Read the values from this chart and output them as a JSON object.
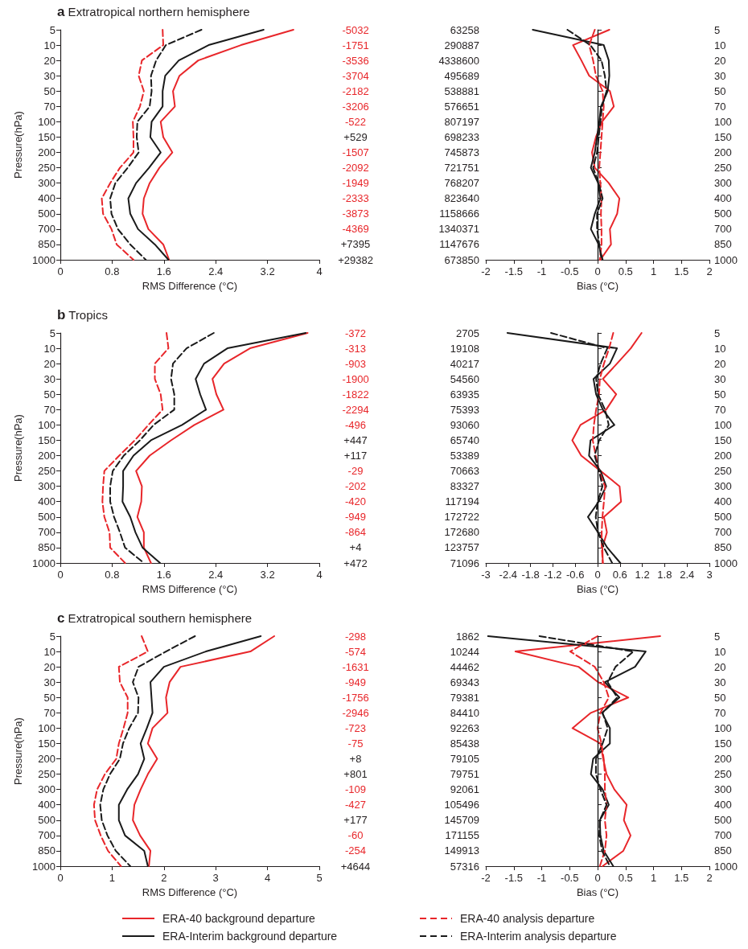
{
  "chart_data": [
    {
      "type": "line",
      "orientation": "horizontal",
      "title": "a Extratropical northern hemisphere",
      "xlabel": "RMS Difference (°C)",
      "ylabel": "Pressure(hPa)",
      "categories": [
        "5",
        "10",
        "20",
        "30",
        "50",
        "70",
        "100",
        "150",
        "200",
        "250",
        "300",
        "400",
        "500",
        "700",
        "850",
        "1000"
      ],
      "xlim": [
        0,
        4
      ],
      "xticks": [
        0,
        0.8,
        1.6,
        2.4,
        3.2,
        4
      ],
      "series": [
        {
          "color": "#e8262a",
          "line_style": "solid",
          "values": [
            3.6,
            2.79,
            2.13,
            1.84,
            1.74,
            1.77,
            1.55,
            1.59,
            1.73,
            1.53,
            1.38,
            1.29,
            1.27,
            1.36,
            1.59,
            1.68
          ]
        },
        {
          "color": "#1a1a1a",
          "line_style": "solid",
          "values": [
            3.14,
            2.29,
            1.83,
            1.62,
            1.58,
            1.58,
            1.41,
            1.39,
            1.55,
            1.37,
            1.17,
            1.05,
            1.08,
            1.2,
            1.46,
            1.67
          ]
        },
        {
          "color": "#e8262a",
          "line_style": "dashed",
          "values": [
            1.58,
            1.59,
            1.26,
            1.21,
            1.29,
            1.23,
            1.12,
            1.13,
            1.13,
            0.92,
            0.77,
            0.64,
            0.66,
            0.79,
            0.87,
            1.13
          ]
        },
        {
          "color": "#1a1a1a",
          "line_style": "dashed",
          "values": [
            2.18,
            1.63,
            1.48,
            1.4,
            1.41,
            1.38,
            1.19,
            1.18,
            1.21,
            1.04,
            0.85,
            0.77,
            0.79,
            0.89,
            1.08,
            1.32
          ]
        }
      ],
      "annotations": [
        "-5032",
        "-1751",
        "-3536",
        "-3704",
        "-2182",
        "-3206",
        "-522",
        "+529",
        "-1507",
        "-2092",
        "-1949",
        "-2333",
        "-3873",
        "-4369",
        "+7395",
        "+29382"
      ]
    },
    {
      "type": "line",
      "orientation": "horizontal",
      "xlabel": "Bias (°C)",
      "categories": [
        "5",
        "10",
        "20",
        "30",
        "50",
        "70",
        "100",
        "150",
        "200",
        "250",
        "300",
        "400",
        "500",
        "700",
        "850",
        "1000"
      ],
      "xlim": [
        -2,
        2
      ],
      "xticks": [
        -2,
        -1.5,
        -1,
        -0.5,
        0,
        0.5,
        1,
        1.5,
        2
      ],
      "ref_lines": [
        {
          "axis": "x",
          "value": 0,
          "color": "#1a1a1a"
        }
      ],
      "series": [
        {
          "color": "#e8262a",
          "line_style": "solid",
          "values": [
            0.21,
            -0.44,
            -0.29,
            -0.15,
            0.22,
            0.29,
            0.08,
            -0.03,
            -0.1,
            -0.05,
            0.2,
            0.39,
            0.35,
            0.22,
            0.24,
            0.05
          ]
        },
        {
          "color": "#1a1a1a",
          "line_style": "solid",
          "values": [
            -1.16,
            0.11,
            0.2,
            0.21,
            0.18,
            0.06,
            0.03,
            -0.01,
            -0.05,
            -0.12,
            0.01,
            0.05,
            -0.05,
            -0.12,
            0.02,
            0.09
          ]
        },
        {
          "color": "#e8262a",
          "line_style": "dashed",
          "values": [
            -0.05,
            -0.15,
            -0.08,
            -0.03,
            0.09,
            0.11,
            0.09,
            0.07,
            0.05,
            0.03,
            0.05,
            0.07,
            0.06,
            0.07,
            0.07,
            0.04
          ]
        },
        {
          "color": "#1a1a1a",
          "line_style": "dashed",
          "values": [
            -0.54,
            -0.13,
            0.07,
            0.13,
            0.16,
            0.08,
            0.05,
            0.02,
            -0.01,
            -0.08,
            0.02,
            0.09,
            -0.01,
            -0.01,
            0.03,
            0.07
          ]
        }
      ],
      "annotations": [
        "63258",
        "290887",
        "4338600",
        "495689",
        "538881",
        "576651",
        "807197",
        "698233",
        "745873",
        "721751",
        "768207",
        "823640",
        "1158666",
        "1340371",
        "1147676",
        "673850"
      ]
    },
    {
      "type": "line",
      "orientation": "horizontal",
      "title": "b Tropics",
      "xlabel": "RMS Difference (°C)",
      "ylabel": "Pressure(hPa)",
      "categories": [
        "5",
        "10",
        "20",
        "30",
        "50",
        "70",
        "100",
        "150",
        "200",
        "250",
        "300",
        "400",
        "500",
        "700",
        "850",
        "1000"
      ],
      "xlim": [
        0,
        4
      ],
      "xticks": [
        0,
        0.8,
        1.6,
        2.4,
        3.2,
        4
      ],
      "series": [
        {
          "color": "#e8262a",
          "line_style": "solid",
          "values": [
            3.82,
            2.93,
            2.53,
            2.35,
            2.41,
            2.52,
            2.07,
            1.71,
            1.38,
            1.17,
            1.26,
            1.25,
            1.19,
            1.29,
            1.29,
            1.4
          ]
        },
        {
          "color": "#1a1a1a",
          "line_style": "solid",
          "values": [
            3.79,
            2.58,
            2.22,
            2.09,
            2.16,
            2.25,
            1.88,
            1.4,
            1.13,
            0.97,
            0.97,
            0.96,
            1.08,
            1.16,
            1.27,
            1.54
          ]
        },
        {
          "color": "#e8262a",
          "line_style": "dashed",
          "values": [
            1.64,
            1.67,
            1.46,
            1.46,
            1.55,
            1.58,
            1.36,
            1.15,
            0.91,
            0.68,
            0.66,
            0.65,
            0.68,
            0.76,
            0.77,
            1.0
          ]
        },
        {
          "color": "#1a1a1a",
          "line_style": "dashed",
          "values": [
            2.37,
            1.95,
            1.74,
            1.71,
            1.76,
            1.76,
            1.44,
            1.23,
            0.98,
            0.81,
            0.77,
            0.77,
            0.83,
            0.92,
            1.0,
            1.29
          ]
        }
      ],
      "annotations": [
        "-372",
        "-313",
        "-903",
        "-1900",
        "-1822",
        "-2294",
        "-496",
        "+447",
        "+117",
        "-29",
        "-202",
        "-420",
        "-949",
        "-864",
        "+4",
        "+472"
      ]
    },
    {
      "type": "line",
      "orientation": "horizontal",
      "xlabel": "Bias (°C)",
      "categories": [
        "5",
        "10",
        "20",
        "30",
        "50",
        "70",
        "100",
        "150",
        "200",
        "250",
        "300",
        "400",
        "500",
        "700",
        "850",
        "1000"
      ],
      "xlim": [
        -3,
        3
      ],
      "xticks": [
        -3,
        -2.4,
        -1.8,
        -1.2,
        -0.6,
        0,
        0.6,
        1.2,
        1.8,
        2.4,
        3
      ],
      "ref_lines": [
        {
          "axis": "x",
          "value": 0,
          "color": "#1a1a1a"
        }
      ],
      "series": [
        {
          "color": "#e8262a",
          "line_style": "solid",
          "values": [
            1.18,
            0.89,
            0.52,
            0.14,
            0.5,
            0.23,
            -0.46,
            -0.68,
            -0.44,
            0.08,
            0.59,
            0.63,
            0.17,
            0.25,
            0.13,
            0.14
          ]
        },
        {
          "color": "#1a1a1a",
          "line_style": "solid",
          "values": [
            -2.42,
            0.52,
            0.33,
            -0.11,
            -0.04,
            0.14,
            0.45,
            -0.19,
            -0.23,
            0.08,
            0.23,
            0.03,
            -0.26,
            0.01,
            0.26,
            0.61
          ]
        },
        {
          "color": "#e8262a",
          "line_style": "dashed",
          "values": [
            0.42,
            0.31,
            0.17,
            0.06,
            0.04,
            -0.04,
            -0.1,
            -0.13,
            -0.05,
            0.04,
            0.2,
            0.17,
            0.13,
            0.11,
            0.11,
            0.14
          ]
        },
        {
          "color": "#1a1a1a",
          "line_style": "dashed",
          "values": [
            -1.25,
            0.26,
            0.08,
            -0.04,
            0.01,
            0.2,
            0.3,
            0.04,
            -0.08,
            0.04,
            0.13,
            0,
            -0.05,
            0.01,
            0.17,
            0.39
          ]
        }
      ],
      "annotations": [
        "2705",
        "19108",
        "40217",
        "54560",
        "63935",
        "75393",
        "93060",
        "65740",
        "53389",
        "70663",
        "83327",
        "117194",
        "172722",
        "172680",
        "123757",
        "71096"
      ]
    },
    {
      "type": "line",
      "orientation": "horizontal",
      "title": "c Extratropical southern hemisphere",
      "xlabel": "RMS Difference (°C)",
      "ylabel": "Pressure(hPa)",
      "legend": "bottom",
      "categories": [
        "5",
        "10",
        "20",
        "30",
        "50",
        "70",
        "100",
        "150",
        "200",
        "250",
        "300",
        "400",
        "500",
        "700",
        "850",
        "1000"
      ],
      "xlim": [
        0,
        5
      ],
      "xticks": [
        0,
        1,
        2,
        3,
        4,
        5
      ],
      "series": [
        {
          "name": "ERA-40 background departure",
          "color": "#e8262a",
          "line_style": "solid",
          "values": [
            4.13,
            3.67,
            2.32,
            2.11,
            2.04,
            2.07,
            1.78,
            1.69,
            1.87,
            1.69,
            1.55,
            1.43,
            1.4,
            1.54,
            1.74,
            1.71
          ]
        },
        {
          "name": "ERA-Interim background departure",
          "color": "#1a1a1a",
          "line_style": "solid",
          "values": [
            3.87,
            2.81,
            2.0,
            1.74,
            1.76,
            1.78,
            1.67,
            1.55,
            1.62,
            1.5,
            1.29,
            1.13,
            1.13,
            1.25,
            1.62,
            1.69
          ]
        },
        {
          "name": "ERA-40 analysis departure",
          "color": "#e8262a",
          "line_style": "dashed",
          "values": [
            1.57,
            1.69,
            1.13,
            1.15,
            1.3,
            1.3,
            1.22,
            1.13,
            1.08,
            0.86,
            0.71,
            0.65,
            0.67,
            0.78,
            0.92,
            1.17
          ]
        },
        {
          "name": "ERA-Interim analysis departure",
          "color": "#1a1a1a",
          "line_style": "dashed",
          "values": [
            2.6,
            2.04,
            1.51,
            1.4,
            1.51,
            1.5,
            1.33,
            1.21,
            1.15,
            0.96,
            0.83,
            0.77,
            0.8,
            0.91,
            1.07,
            1.35
          ]
        }
      ],
      "annotations": [
        "-298",
        "-574",
        "-1631",
        "-949",
        "-1756",
        "-2946",
        "-723",
        "-75",
        "+8",
        "+801",
        "-109",
        "-427",
        "+177",
        "-60",
        "-254",
        "+4644"
      ]
    },
    {
      "type": "line",
      "orientation": "horizontal",
      "xlabel": "Bias (°C)",
      "categories": [
        "5",
        "10",
        "20",
        "30",
        "50",
        "70",
        "100",
        "150",
        "200",
        "250",
        "300",
        "400",
        "500",
        "700",
        "850",
        "1000"
      ],
      "xlim": [
        -2,
        2
      ],
      "xticks": [
        -2,
        -1.5,
        -1,
        -0.5,
        0,
        0.5,
        1,
        1.5,
        2
      ],
      "ref_lines": [
        {
          "axis": "x",
          "value": 0,
          "color": "#1a1a1a"
        }
      ],
      "series": [
        {
          "color": "#e8262a",
          "line_style": "solid",
          "values": [
            1.12,
            -1.47,
            -0.34,
            0.01,
            0.55,
            -0.12,
            -0.45,
            0.05,
            0.1,
            0.16,
            0.3,
            0.52,
            0.47,
            0.59,
            0.46,
            0.09
          ]
        },
        {
          "color": "#1a1a1a",
          "line_style": "solid",
          "values": [
            -1.96,
            0.86,
            0.67,
            0.13,
            0.39,
            0.08,
            0.22,
            0.22,
            -0.08,
            -0.12,
            0.09,
            0.2,
            0.04,
            0.05,
            0.11,
            0.28
          ]
        },
        {
          "color": "#e8262a",
          "line_style": "dashed",
          "values": [
            0,
            -0.49,
            -0.05,
            0.11,
            0.2,
            0.05,
            0,
            0.07,
            0.11,
            0.13,
            0.13,
            0.16,
            0.13,
            0.16,
            0.13,
            0.04
          ]
        },
        {
          "color": "#1a1a1a",
          "line_style": "dashed",
          "values": [
            -1.04,
            0.64,
            0.32,
            0.18,
            0.35,
            0.09,
            0.18,
            0.09,
            -0.03,
            -0.03,
            0.05,
            0.16,
            0.04,
            0.03,
            0.08,
            0.22
          ]
        }
      ],
      "annotations": [
        "1862",
        "10244",
        "44462",
        "69343",
        "79381",
        "84410",
        "92263",
        "85438",
        "79105",
        "79751",
        "92061",
        "105496",
        "145709",
        "171155",
        "149913",
        "57316"
      ]
    }
  ]
}
